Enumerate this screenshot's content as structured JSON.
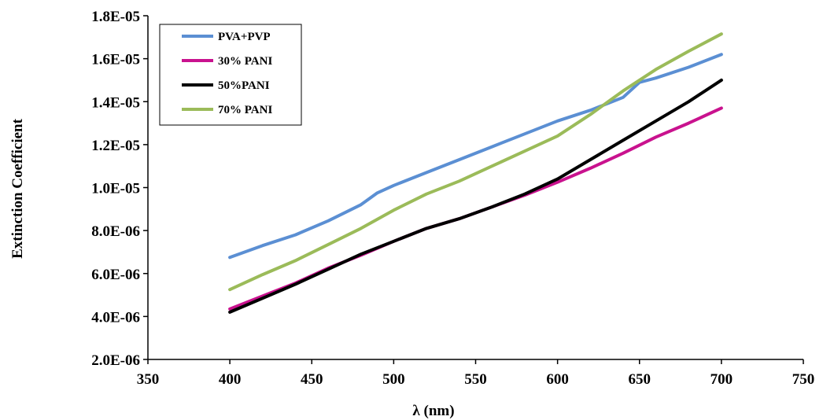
{
  "chart_data": {
    "type": "line",
    "title": "",
    "xlabel": "λ (nm)",
    "ylabel": "Extinction Coefficient",
    "xlim": [
      350,
      750
    ],
    "ylim": [
      2e-06,
      1.8e-05
    ],
    "x_ticks": [
      350,
      400,
      450,
      500,
      550,
      600,
      650,
      700,
      750
    ],
    "x_tick_labels": [
      "350",
      "400",
      "450",
      "500",
      "550",
      "600",
      "650",
      "700",
      "750"
    ],
    "y_ticks": [
      2e-06,
      4e-06,
      6e-06,
      8e-06,
      1e-05,
      1.2e-05,
      1.4e-05,
      1.6e-05,
      1.8e-05
    ],
    "y_tick_labels": [
      "2.0E-06",
      "4.0E-06",
      "6.0E-06",
      "8.0E-06",
      "1.0E-05",
      "1.2E-05",
      "1.4E-05",
      "1.6E-05",
      "1.8E-05"
    ],
    "grid": false,
    "legend_position": "top-left",
    "series": [
      {
        "name": "PVA+PVP",
        "color": "#5b8fd3",
        "x": [
          400,
          420,
          440,
          460,
          480,
          490,
          500,
          520,
          540,
          560,
          580,
          600,
          620,
          640,
          650,
          660,
          680,
          700
        ],
        "y": [
          6.75e-06,
          7.3e-06,
          7.8e-06,
          8.45e-06,
          9.2e-06,
          9.75e-06,
          1.01e-05,
          1.07e-05,
          1.13e-05,
          1.19e-05,
          1.25e-05,
          1.31e-05,
          1.36e-05,
          1.42e-05,
          1.49e-05,
          1.51e-05,
          1.56e-05,
          1.62e-05
        ]
      },
      {
        "name": "30% PANI",
        "color": "#c9128e",
        "x": [
          400,
          420,
          440,
          460,
          480,
          500,
          520,
          540,
          560,
          580,
          600,
          620,
          640,
          660,
          680,
          700
        ],
        "y": [
          4.35e-06,
          4.95e-06,
          5.55e-06,
          6.25e-06,
          6.85e-06,
          7.5e-06,
          8.1e-06,
          8.55e-06,
          9.1e-06,
          9.65e-06,
          1.025e-05,
          1.09e-05,
          1.16e-05,
          1.235e-05,
          1.3e-05,
          1.37e-05
        ]
      },
      {
        "name": "50%PANI",
        "color": "#000000",
        "x": [
          400,
          420,
          440,
          460,
          480,
          500,
          520,
          540,
          560,
          580,
          600,
          620,
          640,
          660,
          680,
          700
        ],
        "y": [
          4.2e-06,
          4.85e-06,
          5.5e-06,
          6.2e-06,
          6.9e-06,
          7.5e-06,
          8.1e-06,
          8.55e-06,
          9.1e-06,
          9.7e-06,
          1.04e-05,
          1.13e-05,
          1.22e-05,
          1.31e-05,
          1.4e-05,
          1.5e-05
        ]
      },
      {
        "name": "70% PANI",
        "color": "#9bbb59",
        "x": [
          400,
          420,
          440,
          460,
          480,
          500,
          520,
          540,
          560,
          580,
          600,
          620,
          640,
          660,
          680,
          700
        ],
        "y": [
          5.25e-06,
          5.95e-06,
          6.6e-06,
          7.35e-06,
          8.1e-06,
          8.95e-06,
          9.7e-06,
          1.03e-05,
          1.1e-05,
          1.17e-05,
          1.24e-05,
          1.34e-05,
          1.45e-05,
          1.55e-05,
          1.635e-05,
          1.715e-05
        ]
      }
    ]
  }
}
